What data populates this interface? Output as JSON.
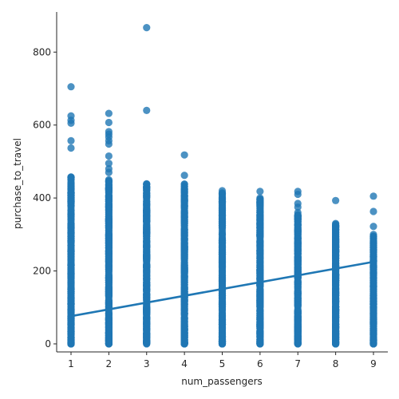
{
  "chart_data": {
    "type": "scatter",
    "title": "",
    "xlabel": "num_passengers",
    "ylabel": "purchase_to_travel",
    "xlim": [
      0.62,
      9.38
    ],
    "ylim": [
      -22,
      910
    ],
    "x_ticks": [
      1,
      2,
      3,
      4,
      5,
      6,
      7,
      8,
      9
    ],
    "y_ticks": [
      0,
      200,
      400,
      600,
      800
    ],
    "grid": false,
    "legend": "none",
    "point_color": "#1f77b4",
    "line_color": "#1f77b4",
    "columns": [
      {
        "x": 1,
        "dense_min": 0,
        "dense_max": 460,
        "outliers": [
          537,
          557,
          605,
          613,
          625,
          705
        ]
      },
      {
        "x": 2,
        "dense_min": 0,
        "dense_max": 450,
        "outliers": [
          470,
          480,
          495,
          515,
          548,
          557,
          567,
          575,
          582,
          607,
          632
        ]
      },
      {
        "x": 3,
        "dense_min": 0,
        "dense_max": 440,
        "outliers": [
          640,
          867
        ]
      },
      {
        "x": 4,
        "dense_min": 0,
        "dense_max": 440,
        "outliers": [
          462,
          518
        ]
      },
      {
        "x": 5,
        "dense_min": 0,
        "dense_max": 420,
        "outliers": []
      },
      {
        "x": 6,
        "dense_min": 0,
        "dense_max": 400,
        "outliers": [
          418
        ]
      },
      {
        "x": 7,
        "dense_min": 0,
        "dense_max": 360,
        "outliers": [
          375,
          385,
          410,
          418
        ]
      },
      {
        "x": 8,
        "dense_min": 0,
        "dense_max": 330,
        "outliers": [
          393
        ]
      },
      {
        "x": 9,
        "dense_min": 0,
        "dense_max": 300,
        "outliers": [
          322,
          363,
          405
        ]
      }
    ],
    "regression": {
      "x": [
        1,
        9
      ],
      "y": [
        76,
        225
      ]
    }
  }
}
